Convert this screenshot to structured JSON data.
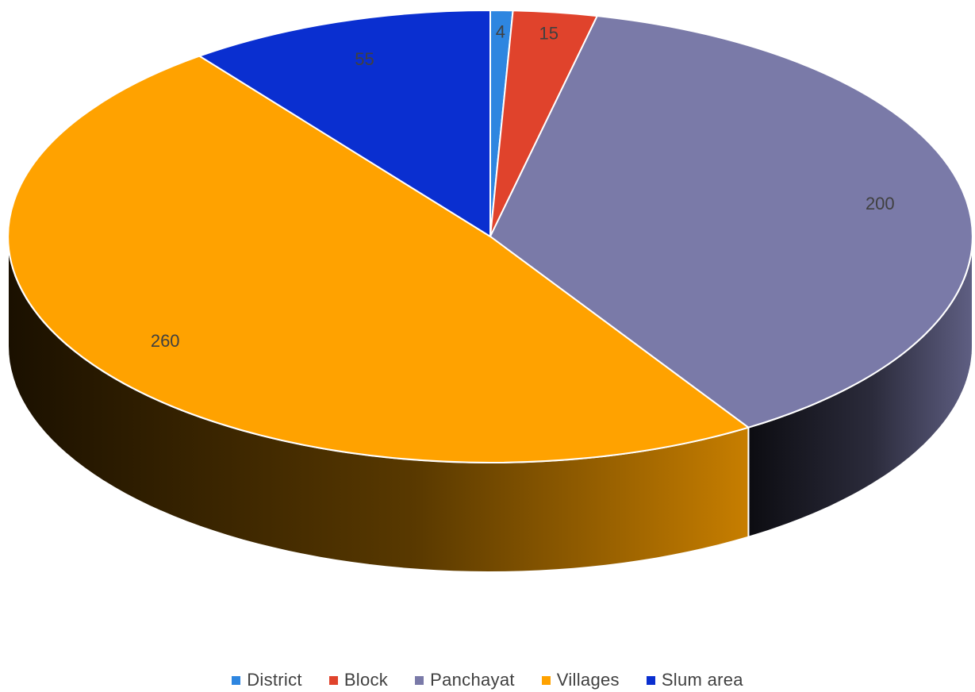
{
  "chart_data": {
    "type": "pie",
    "title": "",
    "style": "3d",
    "categories": [
      "District",
      "Block",
      "Panchayat",
      "Villages",
      "Slum area"
    ],
    "values": [
      4,
      15,
      200,
      260,
      55
    ],
    "colors": [
      "#2E86E0",
      "#E0432C",
      "#7A7AA8",
      "#FFA200",
      "#0A2FD0"
    ],
    "data_labels": [
      "4",
      "15",
      "200",
      "260",
      "55"
    ],
    "legend_position": "bottom"
  }
}
